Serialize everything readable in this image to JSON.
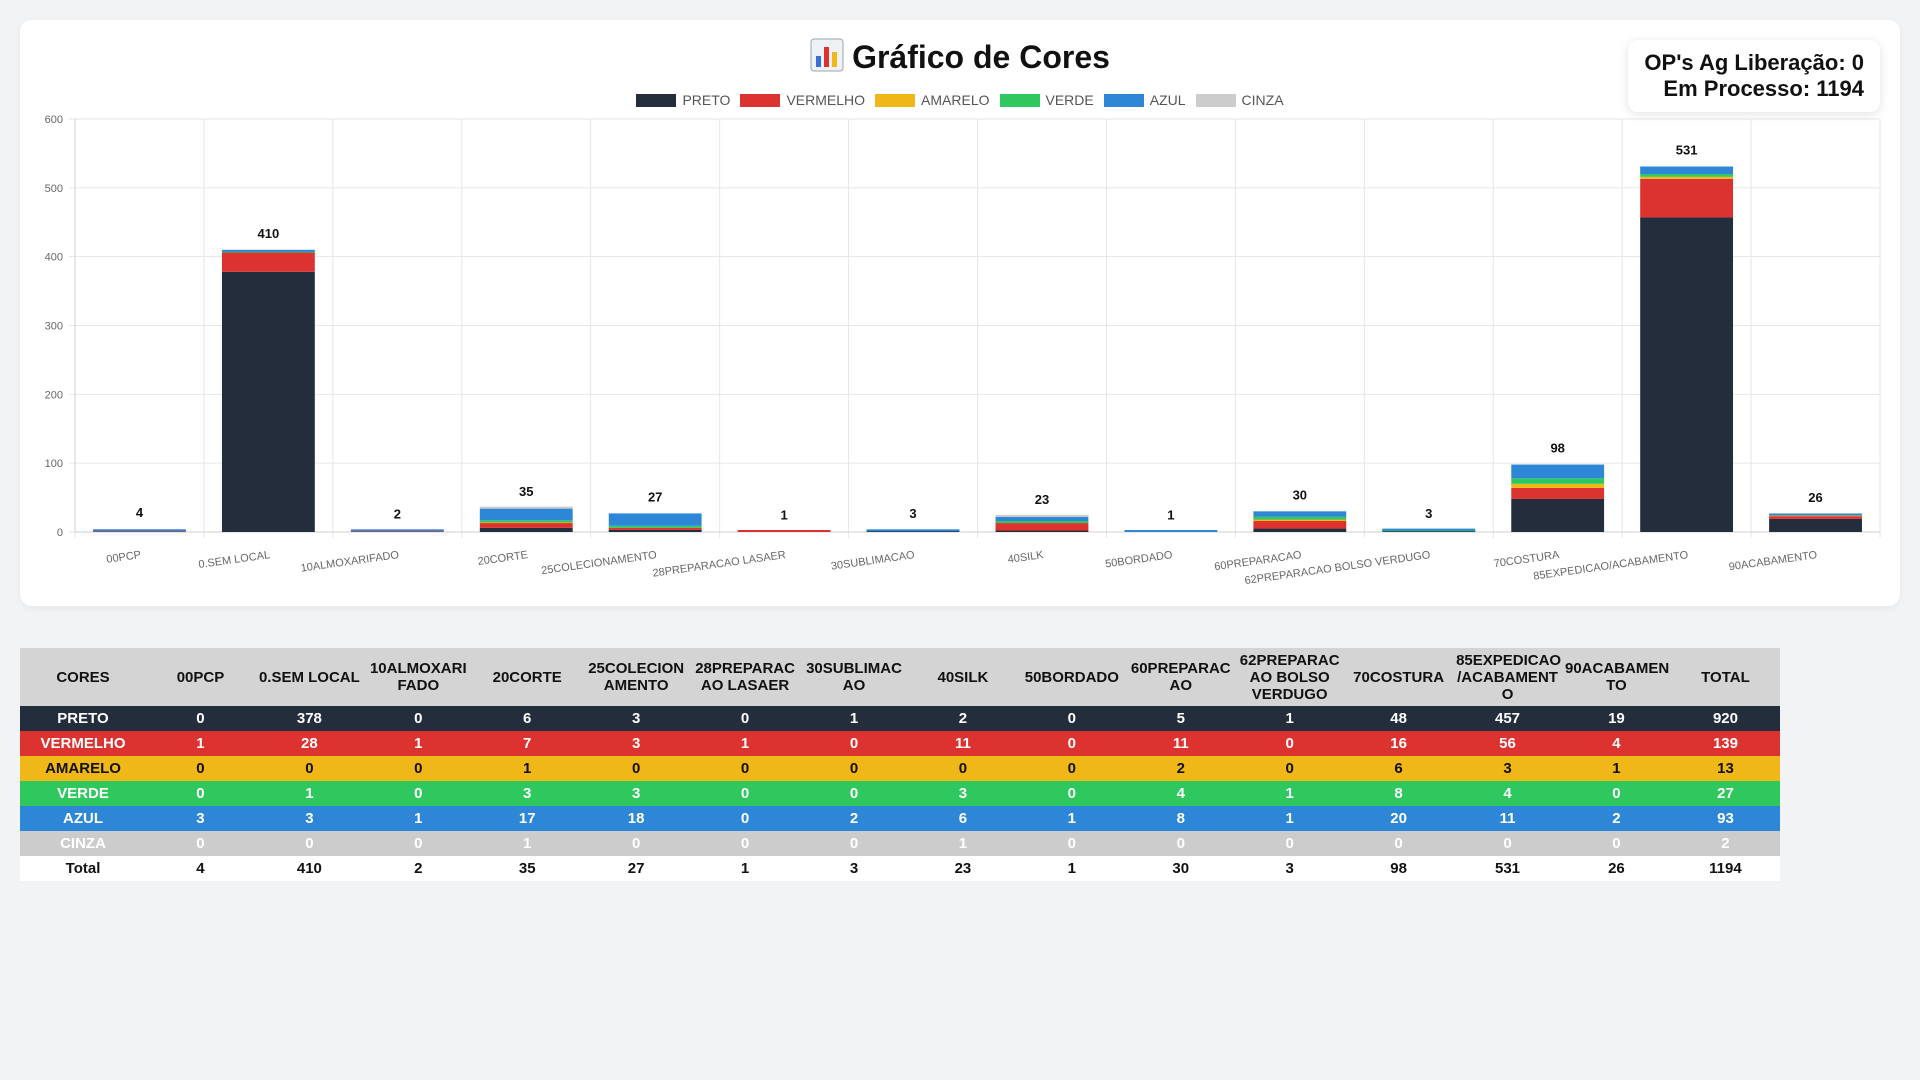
{
  "title": "Gráfico de Cores",
  "status": {
    "aguardando": "OP's Ag Liberação: 0",
    "processo": "Em Processo: 1194"
  },
  "colors": {
    "PRETO": "#232d3b",
    "VERMELHO": "#dc3330",
    "AMARELO": "#f0b718",
    "VERDE": "#2fc85f",
    "AZUL": "#2d87d6",
    "CINZA": "#cccccc"
  },
  "chart_data": {
    "type": "bar",
    "stacked": true,
    "title": "Gráfico de Cores",
    "categories": [
      "00PCP",
      "0.SEM LOCAL",
      "10ALMOXARIFADO",
      "20CORTE",
      "25COLECIONAMENTO",
      "28PREPARACAO LASAER",
      "30SUBLIMACAO",
      "40SILK",
      "50BORDADO",
      "60PREPARACAO",
      "62PREPARACAO BOLSO VERDUGO",
      "70COSTURA",
      "85EXPEDICAO/ACABAMENTO",
      "90ACABAMENTO"
    ],
    "series": [
      {
        "name": "PRETO",
        "values": [
          0,
          378,
          0,
          6,
          3,
          0,
          1,
          2,
          0,
          5,
          1,
          48,
          457,
          19
        ]
      },
      {
        "name": "VERMELHO",
        "values": [
          1,
          28,
          1,
          7,
          3,
          1,
          0,
          11,
          0,
          11,
          0,
          16,
          56,
          4
        ]
      },
      {
        "name": "AMARELO",
        "values": [
          0,
          0,
          0,
          1,
          0,
          0,
          0,
          0,
          0,
          2,
          0,
          6,
          3,
          1
        ]
      },
      {
        "name": "VERDE",
        "values": [
          0,
          1,
          0,
          3,
          3,
          0,
          0,
          3,
          0,
          4,
          1,
          8,
          4,
          0
        ]
      },
      {
        "name": "AZUL",
        "values": [
          3,
          3,
          1,
          17,
          18,
          0,
          2,
          6,
          1,
          8,
          1,
          20,
          11,
          2
        ]
      },
      {
        "name": "CINZA",
        "values": [
          0,
          0,
          0,
          1,
          0,
          0,
          0,
          1,
          0,
          0,
          0,
          0,
          0,
          0
        ]
      }
    ],
    "totals": [
      4,
      410,
      2,
      35,
      27,
      1,
      3,
      23,
      1,
      30,
      3,
      98,
      531,
      26
    ],
    "ylim": [
      0,
      600
    ],
    "yticks": [
      0,
      100,
      200,
      300,
      400,
      500,
      600
    ],
    "legend_position": "top",
    "grid": true
  },
  "table": {
    "headers": [
      "CORES",
      "00PCP",
      "0.SEM LOCAL",
      "10ALMOXARI FADO",
      "20CORTE",
      "25COLECION AMENTO",
      "28PREPARAC AO LASAER",
      "30SUBLIMAC AO",
      "40SILK",
      "50BORDADO",
      "60PREPARAC AO",
      "62PREPARAC AO BOLSO VERDUGO",
      "70COSTURA",
      "85EXPEDICAO /ACABAMENT O",
      "90ACABAMEN TO",
      "TOTAL"
    ],
    "rows": [
      {
        "label": "PRETO",
        "bg": "#232d3b",
        "fg": "#ffffff",
        "cells": [
          "0",
          "378",
          "0",
          "6",
          "3",
          "0",
          "1",
          "2",
          "0",
          "5",
          "1",
          "48",
          "457",
          "19",
          "920"
        ]
      },
      {
        "label": "VERMELHO",
        "bg": "#dc3330",
        "fg": "#ffffff",
        "cells": [
          "1",
          "28",
          "1",
          "7",
          "3",
          "1",
          "0",
          "11",
          "0",
          "11",
          "0",
          "16",
          "56",
          "4",
          "139"
        ]
      },
      {
        "label": "AMARELO",
        "bg": "#f0b718",
        "fg": "#111111",
        "cells": [
          "0",
          "0",
          "0",
          "1",
          "0",
          "0",
          "0",
          "0",
          "0",
          "2",
          "0",
          "6",
          "3",
          "1",
          "13"
        ]
      },
      {
        "label": "VERDE",
        "bg": "#2fc85f",
        "fg": "#ffffff",
        "cells": [
          "0",
          "1",
          "0",
          "3",
          "3",
          "0",
          "0",
          "3",
          "0",
          "4",
          "1",
          "8",
          "4",
          "0",
          "27"
        ]
      },
      {
        "label": "AZUL",
        "bg": "#2d87d6",
        "fg": "#ffffff",
        "cells": [
          "3",
          "3",
          "1",
          "17",
          "18",
          "0",
          "2",
          "6",
          "1",
          "8",
          "1",
          "20",
          "11",
          "2",
          "93"
        ]
      },
      {
        "label": "CINZA",
        "bg": "#cccccc",
        "fg": "#ffffff",
        "cells": [
          "0",
          "0",
          "0",
          "1",
          "0",
          "0",
          "0",
          "1",
          "0",
          "0",
          "0",
          "0",
          "0",
          "0",
          "2"
        ]
      }
    ],
    "total_row": {
      "label": "Total",
      "cells": [
        "4",
        "410",
        "2",
        "35",
        "27",
        "1",
        "3",
        "23",
        "1",
        "30",
        "3",
        "98",
        "531",
        "26",
        "1194"
      ]
    }
  }
}
